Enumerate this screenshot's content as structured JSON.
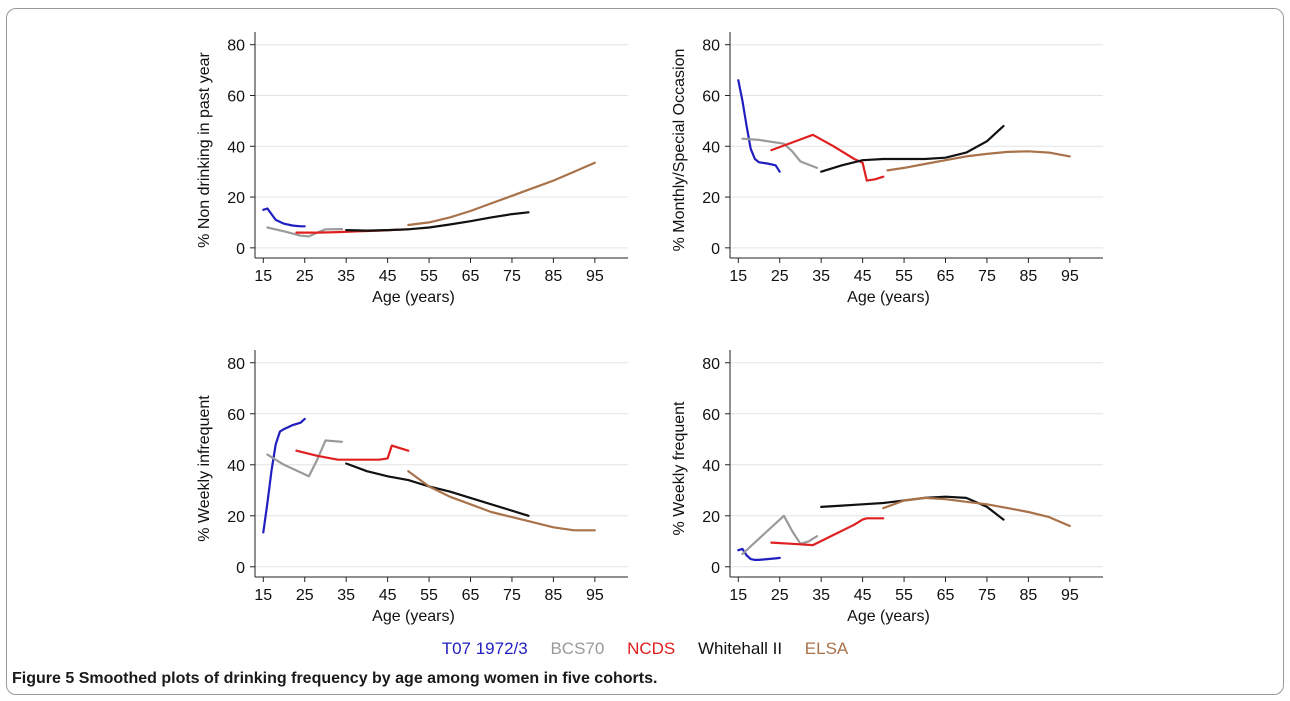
{
  "caption": {
    "label": "Figure 5",
    "text": "Smoothed plots of drinking frequency by age among women in five cohorts."
  },
  "legend": [
    {
      "name": "T07 1972/3",
      "color": "#1f1fbf"
    },
    {
      "name": "BCS70",
      "color": "#9a9a9a"
    },
    {
      "name": "NCDS",
      "color": "#e02020"
    },
    {
      "name": "Whitehall II",
      "color": "#111111"
    },
    {
      "name": "ELSA",
      "color": "#a8724a"
    }
  ],
  "chart_data": [
    {
      "type": "line",
      "title": "",
      "xlabel": "Age (years)",
      "ylabel": "% Non drinking in past year",
      "xlim": [
        13,
        103
      ],
      "ylim": [
        -4,
        85
      ],
      "xticks": [
        15,
        25,
        35,
        45,
        55,
        65,
        75,
        85,
        95
      ],
      "yticks": [
        0,
        20,
        40,
        60,
        80
      ],
      "grid": true,
      "series": [
        {
          "name": "T07 1972/3",
          "x": [
            15,
            16,
            18,
            20,
            22,
            24,
            25
          ],
          "y": [
            15,
            15.5,
            11,
            9.5,
            8.8,
            8.5,
            8.5
          ]
        },
        {
          "name": "BCS70",
          "x": [
            16,
            20,
            24,
            26,
            28,
            30,
            34
          ],
          "y": [
            8,
            6.5,
            4.8,
            4.5,
            6,
            7.3,
            7.4
          ]
        },
        {
          "name": "NCDS",
          "x": [
            23,
            28,
            33,
            38,
            43,
            48,
            50
          ],
          "y": [
            6,
            6,
            6.2,
            6.5,
            6.8,
            7.2,
            7.3
          ]
        },
        {
          "name": "Whitehall II",
          "x": [
            35,
            40,
            45,
            50,
            55,
            60,
            65,
            70,
            75,
            79
          ],
          "y": [
            7,
            6.8,
            7,
            7.3,
            8,
            9.2,
            10.5,
            12,
            13.3,
            14
          ]
        },
        {
          "name": "ELSA",
          "x": [
            50,
            55,
            60,
            65,
            70,
            75,
            80,
            85,
            90,
            95
          ],
          "y": [
            9,
            10,
            12,
            14.5,
            17.5,
            20.5,
            23.5,
            26.5,
            30,
            33.5
          ]
        }
      ]
    },
    {
      "type": "line",
      "title": "",
      "xlabel": "Age (years)",
      "ylabel": "% Monthly/Special Occasion",
      "xlim": [
        13,
        103
      ],
      "ylim": [
        -4,
        85
      ],
      "xticks": [
        15,
        25,
        35,
        45,
        55,
        65,
        75,
        85,
        95
      ],
      "yticks": [
        0,
        20,
        40,
        60,
        80
      ],
      "grid": true,
      "series": [
        {
          "name": "T07 1972/3",
          "x": [
            15,
            16,
            17,
            18,
            19,
            20,
            22,
            24,
            25
          ],
          "y": [
            66,
            58,
            48,
            39,
            35,
            33.7,
            33.2,
            32.5,
            30
          ]
        },
        {
          "name": "BCS70",
          "x": [
            16,
            20,
            26,
            28,
            30,
            34
          ],
          "y": [
            43,
            42.5,
            41,
            38,
            34,
            31.5
          ]
        },
        {
          "name": "NCDS",
          "x": [
            23,
            28,
            33,
            38,
            43,
            45,
            46,
            48,
            50
          ],
          "y": [
            38.5,
            41.5,
            44.5,
            40,
            35,
            33.5,
            26.5,
            27,
            28
          ]
        },
        {
          "name": "Whitehall II",
          "x": [
            35,
            40,
            45,
            50,
            55,
            60,
            65,
            70,
            75,
            79
          ],
          "y": [
            30,
            32.5,
            34.5,
            35,
            35,
            35,
            35.5,
            37.5,
            42,
            48
          ]
        },
        {
          "name": "ELSA",
          "x": [
            51,
            55,
            60,
            65,
            70,
            75,
            80,
            85,
            90,
            95
          ],
          "y": [
            30.5,
            31.5,
            33,
            34.5,
            36,
            37,
            37.8,
            38,
            37.5,
            36
          ]
        }
      ]
    },
    {
      "type": "line",
      "title": "",
      "xlabel": "Age (years)",
      "ylabel": "% Weekly infrequent",
      "xlim": [
        13,
        103
      ],
      "ylim": [
        -4,
        85
      ],
      "xticks": [
        15,
        25,
        35,
        45,
        55,
        65,
        75,
        85,
        95
      ],
      "yticks": [
        0,
        20,
        40,
        60,
        80
      ],
      "grid": true,
      "series": [
        {
          "name": "T07 1972/3",
          "x": [
            15,
            16,
            17,
            18,
            19,
            20,
            22,
            24,
            25
          ],
          "y": [
            13.5,
            25,
            38,
            48,
            53,
            54,
            55.5,
            56.5,
            58
          ]
        },
        {
          "name": "BCS70",
          "x": [
            16,
            20,
            26,
            28,
            30,
            34
          ],
          "y": [
            44,
            40,
            35.5,
            42,
            49.5,
            49
          ]
        },
        {
          "name": "NCDS",
          "x": [
            23,
            28,
            33,
            38,
            43,
            45,
            46,
            48,
            50
          ],
          "y": [
            45.5,
            43.5,
            42,
            42,
            42,
            42.5,
            47.5,
            46.5,
            45.5
          ]
        },
        {
          "name": "Whitehall II",
          "x": [
            35,
            40,
            45,
            50,
            55,
            60,
            65,
            70,
            75,
            79
          ],
          "y": [
            40.5,
            37.5,
            35.5,
            34,
            31.5,
            29.5,
            27,
            24.5,
            22,
            20
          ]
        },
        {
          "name": "ELSA",
          "x": [
            50,
            55,
            60,
            65,
            70,
            75,
            80,
            85,
            90,
            95
          ],
          "y": [
            37.5,
            31.5,
            27.5,
            24.5,
            21.5,
            19.5,
            17.5,
            15.5,
            14.3,
            14.3
          ]
        }
      ]
    },
    {
      "type": "line",
      "title": "",
      "xlabel": "Age (years)",
      "ylabel": "% Weekly frequent",
      "xlim": [
        13,
        103
      ],
      "ylim": [
        -4,
        85
      ],
      "xticks": [
        15,
        25,
        35,
        45,
        55,
        65,
        75,
        85,
        95
      ],
      "yticks": [
        0,
        20,
        40,
        60,
        80
      ],
      "grid": true,
      "series": [
        {
          "name": "T07 1972/3",
          "x": [
            15,
            16,
            17,
            18,
            19,
            20,
            22,
            24,
            25
          ],
          "y": [
            6.5,
            7,
            4.5,
            3,
            2.7,
            2.7,
            3,
            3.3,
            3.5
          ]
        },
        {
          "name": "BCS70",
          "x": [
            16,
            20,
            26,
            28,
            30,
            32,
            34
          ],
          "y": [
            5,
            11,
            20,
            14,
            9,
            10,
            12
          ]
        },
        {
          "name": "NCDS",
          "x": [
            23,
            28,
            33,
            38,
            43,
            45,
            46,
            48,
            50
          ],
          "y": [
            9.5,
            9,
            8.5,
            12.5,
            16.5,
            18.5,
            19,
            19,
            19
          ]
        },
        {
          "name": "Whitehall II",
          "x": [
            35,
            40,
            45,
            50,
            55,
            60,
            65,
            70,
            75,
            79
          ],
          "y": [
            23.5,
            24,
            24.5,
            25,
            26,
            27,
            27.5,
            27,
            23.5,
            18.5
          ]
        },
        {
          "name": "ELSA",
          "x": [
            50,
            55,
            60,
            65,
            70,
            75,
            80,
            85,
            90,
            95
          ],
          "y": [
            23,
            26,
            27,
            26.5,
            25.5,
            24.5,
            23,
            21.5,
            19.5,
            16
          ]
        }
      ]
    }
  ]
}
